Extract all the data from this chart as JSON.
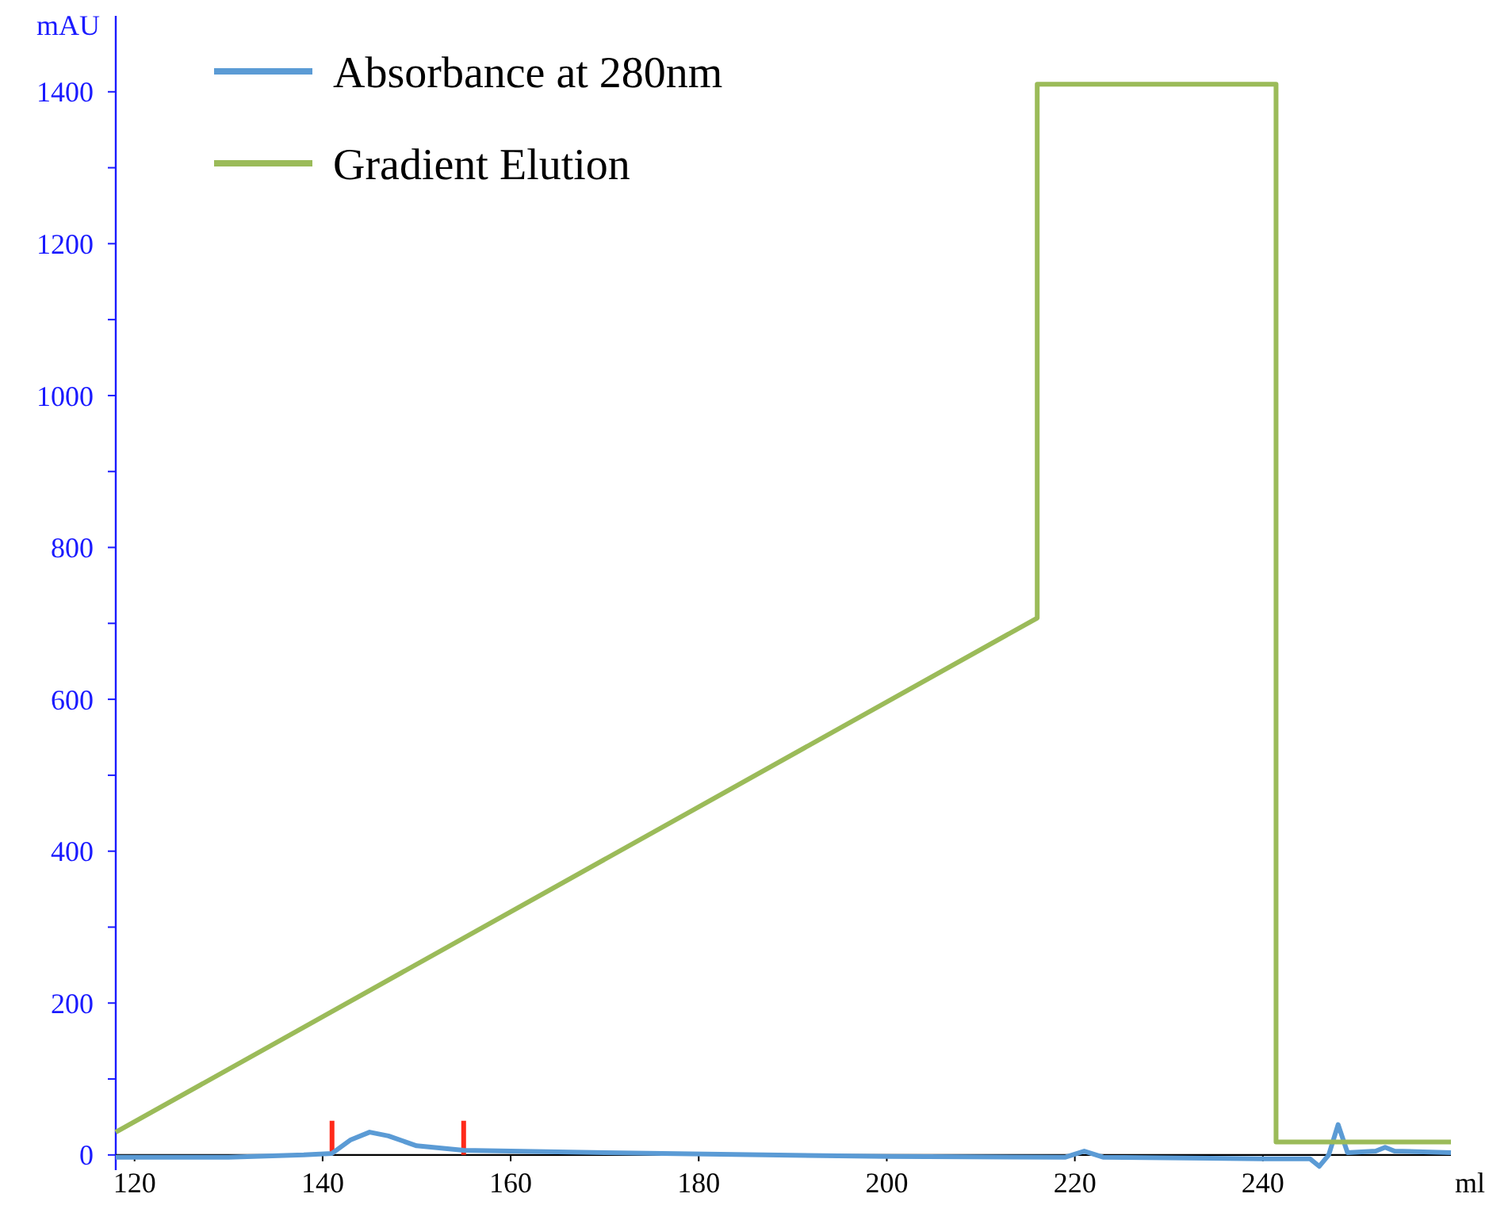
{
  "chart_data": {
    "type": "line",
    "xlabel": "ml",
    "ylabel": "mAU",
    "xlim": [
      118,
      260
    ],
    "xticks": [
      120,
      140,
      160,
      180,
      200,
      220,
      240
    ],
    "ylim": [
      -20,
      1500
    ],
    "yticks": [
      0,
      {
        "value": 100,
        "label": null
      },
      200,
      {
        "value": 300,
        "label": null
      },
      400,
      {
        "value": 500,
        "label": null
      },
      600,
      {
        "value": 700,
        "label": null
      },
      800,
      {
        "value": 900,
        "label": null
      },
      1000,
      {
        "value": 1100,
        "label": null
      },
      1200,
      {
        "value": 1300,
        "label": null
      },
      1400
    ],
    "grid": false,
    "legend": "top left",
    "marker": "none",
    "line_style": "solid",
    "series": [
      {
        "color": "#ff2a1a",
        "x": [
          141,
          141,
          148,
          155,
          155
        ],
        "values": [
          0,
          45,
          null,
          0,
          45
        ]
      },
      {
        "name": "Absorbance at 280nm",
        "color": "#5b9bd5",
        "x": [
          118,
          130,
          138,
          141,
          143,
          145,
          147,
          150,
          155,
          170,
          200,
          219,
          221,
          223,
          240,
          245,
          246,
          247,
          248,
          249,
          252,
          253,
          254,
          260
        ],
        "values": [
          -3,
          -3,
          0,
          2,
          20,
          30,
          25,
          12,
          6,
          3,
          -2,
          -3,
          5,
          -3,
          -5,
          -5,
          -15,
          0,
          40,
          3,
          5,
          10,
          5,
          3
        ]
      },
      {
        "name": "Gradient Elution",
        "color": "#9bbb59",
        "x": [
          118,
          216,
          216,
          241.4,
          241.4,
          260
        ],
        "values": [
          30,
          707,
          1410,
          1410,
          17,
          17
        ]
      }
    ]
  }
}
